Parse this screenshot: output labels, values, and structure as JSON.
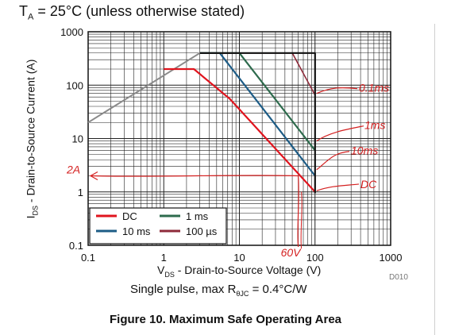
{
  "condition": {
    "prefix": "T",
    "sub": "A",
    "rest": " = 25°C (unless otherwise stated)"
  },
  "axes": {
    "xlabel_prefix": "V",
    "xlabel_sub": "DS",
    "xlabel_rest": " - Drain-to-Source Voltage (V)",
    "ylabel_prefix": "I",
    "ylabel_sub": "DS",
    "ylabel_rest": " - Drain-to-Source Current (A)"
  },
  "pulse_note": {
    "prefix": "Single pulse, max R",
    "sub": "θJC",
    "rest": " = 0.4°C/W"
  },
  "doc_code": "D010",
  "figure_caption": "Figure 10. Maximum Safe Operating Area",
  "colors": {
    "dc": "#e0141e",
    "ms10": "#1d5c86",
    "ms1": "#2e6b4d",
    "us100": "#8e2a3a",
    "rds_limit": "#8a8a8a",
    "annotation": "#d42020"
  },
  "chart_data": {
    "type": "line",
    "x_scale": "log",
    "y_scale": "log",
    "xlim": [
      0.1,
      1000
    ],
    "ylim": [
      0.1,
      1000
    ],
    "x_ticks": [
      "0.1",
      "1",
      "10",
      "100",
      "1000"
    ],
    "y_ticks": [
      "0.1",
      "1",
      "10",
      "100",
      "1000"
    ],
    "grid": true,
    "legend_position": "bottom-left",
    "series": [
      {
        "key": "rds",
        "x": [
          0.1,
          3
        ],
        "y": [
          20,
          400
        ]
      },
      {
        "key": "dc",
        "name": "DC",
        "x": [
          1,
          2.5,
          7.5,
          100
        ],
        "y": [
          200,
          200,
          55,
          1
        ]
      },
      {
        "key": "ms10",
        "name": "10 ms",
        "x": [
          3,
          5.5,
          100
        ],
        "y": [
          400,
          400,
          2
        ]
      },
      {
        "key": "ms1",
        "name": "1 ms",
        "x": [
          3,
          10,
          100
        ],
        "y": [
          400,
          400,
          6
        ]
      },
      {
        "key": "us100",
        "name": "100 µs",
        "x": [
          3,
          50,
          100
        ],
        "y": [
          400,
          400,
          65
        ]
      },
      {
        "key": "frame",
        "x": [
          3,
          100,
          100
        ],
        "y": [
          400,
          400,
          0.95
        ]
      }
    ],
    "legend": [
      {
        "key": "dc",
        "label": "DC"
      },
      {
        "key": "ms1",
        "label": "1 ms"
      },
      {
        "key": "ms10",
        "label": "10 ms"
      },
      {
        "key": "us100",
        "label": "100 µs"
      }
    ],
    "annotations": {
      "us100": "0.1ms",
      "ms1": "1ms",
      "ms10": "10ms",
      "dc": "DC",
      "current_line": "2A",
      "voltage_line": "60V",
      "current_value": 2,
      "voltage_value": 60
    }
  }
}
